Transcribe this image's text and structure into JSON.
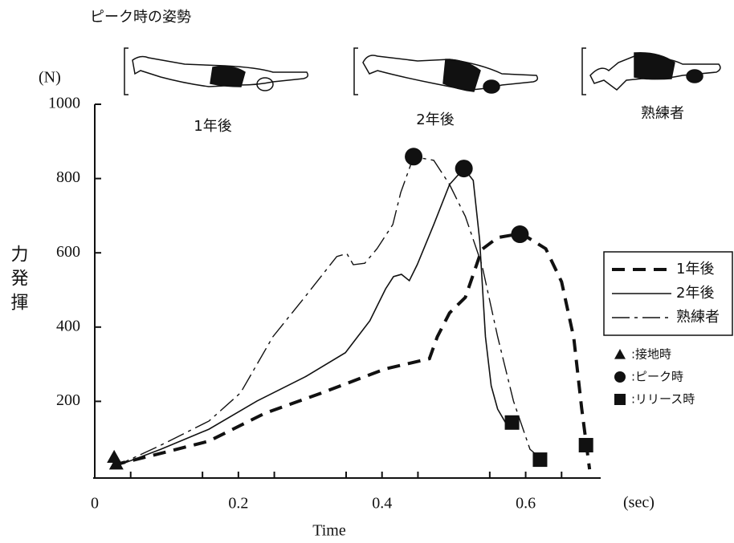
{
  "chart_data": {
    "type": "line",
    "header": "ピーク時の姿勢",
    "y_unit": "(N)",
    "x_unit": "(sec)",
    "x_label": "Time",
    "y_label": "力発揮",
    "figure_labels": [
      "1年後",
      "2年後",
      "熟練者"
    ],
    "xlim": [
      0,
      0.7
    ],
    "ylim": [
      0,
      1000
    ],
    "xticks": [
      0,
      0.2,
      0.4,
      0.6
    ],
    "yticks": [
      200,
      400,
      600,
      800,
      1000
    ],
    "series": [
      {
        "name": "1年後",
        "color": "#111111",
        "dash": "long",
        "width": 4,
        "x": [
          0.025,
          0.092,
          0.159,
          0.237,
          0.315,
          0.404,
          0.466,
          0.477,
          0.494,
          0.516,
          0.539,
          0.561,
          0.594,
          0.628,
          0.65,
          0.667,
          0.678,
          0.689
        ],
        "values": [
          28,
          60,
          93,
          168,
          222,
          287,
          315,
          374,
          438,
          480,
          609,
          641,
          652,
          611,
          522,
          371,
          181,
          17
        ]
      },
      {
        "name": "2年後",
        "color": "#111111",
        "dash": "solid",
        "width": 1.6,
        "x": [
          0.025,
          0.092,
          0.159,
          0.226,
          0.293,
          0.349,
          0.383,
          0.405,
          0.416,
          0.427,
          0.438,
          0.449,
          0.472,
          0.494,
          0.514,
          0.527,
          0.536,
          0.544,
          0.552,
          0.561,
          0.574,
          0.583
        ],
        "values": [
          22,
          71,
          125,
          201,
          266,
          331,
          417,
          503,
          536,
          542,
          525,
          568,
          676,
          784,
          827,
          795,
          633,
          374,
          242,
          179,
          136,
          140
        ]
      },
      {
        "name": "熟練者",
        "color": "#111111",
        "dash": "longshort",
        "width": 1.4,
        "x": [
          0.025,
          0.092,
          0.159,
          0.203,
          0.248,
          0.293,
          0.337,
          0.351,
          0.36,
          0.376,
          0.393,
          0.415,
          0.426,
          0.444,
          0.472,
          0.494,
          0.516,
          0.539,
          0.561,
          0.583,
          0.606,
          0.623
        ],
        "values": [
          22,
          82,
          147,
          223,
          374,
          482,
          590,
          598,
          568,
          572,
          611,
          676,
          762,
          859,
          849,
          784,
          698,
          568,
          374,
          201,
          71,
          43
        ]
      }
    ],
    "markers": [
      {
        "label": ":接地時",
        "shape": "triangle",
        "points": [
          {
            "x": 0.027,
            "y": 50
          },
          {
            "x": 0.03,
            "y": 32
          }
        ]
      },
      {
        "label": ":ピーク時",
        "shape": "circle",
        "points": [
          {
            "x": 0.592,
            "y": 650
          },
          {
            "x": 0.514,
            "y": 827
          },
          {
            "x": 0.444,
            "y": 859
          }
        ]
      },
      {
        "label": ":リリース時",
        "shape": "square",
        "points": [
          {
            "x": 0.684,
            "y": 82
          },
          {
            "x": 0.581,
            "y": 143
          },
          {
            "x": 0.62,
            "y": 43
          }
        ]
      }
    ]
  }
}
